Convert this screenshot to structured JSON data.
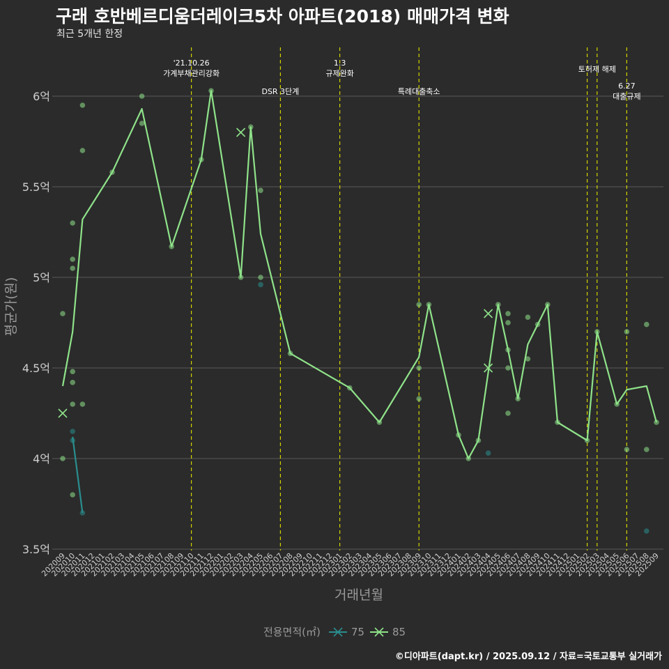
{
  "header": {
    "title": "구래 호반베르디움더레이크5차 아파트(2018) 매매가격 변화",
    "subtitle": "최근 5개년 한정"
  },
  "caption": "©디아파트(dapt.kr) / 2025.09.12 / 자료=국토교통부 실거래가",
  "legend": {
    "title": "전용면적(㎡)",
    "items": [
      {
        "label": "75",
        "color": "#2a8e8e"
      },
      {
        "label": "85",
        "color": "#8fe38a"
      }
    ]
  },
  "colors": {
    "background": "#2b2b2b",
    "grid": "#5a5a5a",
    "event_line": "#d4d400",
    "series75": "#2a8e8e",
    "series85": "#8fe38a",
    "axis_text": "#cfcfcf"
  },
  "chart_data": {
    "type": "line",
    "title": "구래 호반베르디움더레이크5차 아파트(2018) 매매가격 변화",
    "xlabel": "거래년월",
    "ylabel": "평균가(원)",
    "ylim": [
      3.5,
      6.25
    ],
    "yticks": [
      {
        "value": 3.5,
        "label": "3.5억"
      },
      {
        "value": 4.0,
        "label": "4억"
      },
      {
        "value": 4.5,
        "label": "4.5억"
      },
      {
        "value": 5.0,
        "label": "5억"
      },
      {
        "value": 5.5,
        "label": "5.5억"
      },
      {
        "value": 6.0,
        "label": "6억"
      }
    ],
    "categories": [
      "202009",
      "202010",
      "202011",
      "202012",
      "202101",
      "202102",
      "202103",
      "202104",
      "202105",
      "202106",
      "202107",
      "202108",
      "202109",
      "202110",
      "202111",
      "202112",
      "202201",
      "202202",
      "202203",
      "202204",
      "202205",
      "202206",
      "202207",
      "202208",
      "202209",
      "202210",
      "202211",
      "202212",
      "202301",
      "202302",
      "202303",
      "202304",
      "202305",
      "202306",
      "202307",
      "202308",
      "202309",
      "202310",
      "202311",
      "202312",
      "202401",
      "202402",
      "202403",
      "202404",
      "202405",
      "202406",
      "202407",
      "202408",
      "202409",
      "202410",
      "202411",
      "202412",
      "202501",
      "202502",
      "202503",
      "202504",
      "202505",
      "202506",
      "202507",
      "202508",
      "202509"
    ],
    "events": [
      {
        "x": 13.0,
        "label": "'21.10.26\n가계부채관리강화"
      },
      {
        "x": 22.0,
        "label": "DSR 3단계"
      },
      {
        "x": 28.0,
        "label": "1.3\n규제완화"
      },
      {
        "x": 36.0,
        "label": "특례대출축소"
      },
      {
        "x": 53.0,
        "label": ""
      },
      {
        "x": 54.0,
        "label": "토허제 해제"
      },
      {
        "x": 57.0,
        "label": "6.27\n대출규제"
      }
    ],
    "series": [
      {
        "name": "75",
        "color": "#2a8e8e",
        "line": [
          [
            1,
            4.12
          ],
          [
            2,
            3.7
          ]
        ],
        "markers": [],
        "points": [
          [
            1,
            4.15
          ],
          [
            1,
            4.1
          ],
          [
            2,
            3.7
          ],
          [
            20,
            4.96
          ],
          [
            43,
            4.03
          ],
          [
            59,
            3.6
          ]
        ]
      },
      {
        "name": "85",
        "color": "#8fe38a",
        "line": [
          [
            0,
            4.4
          ],
          [
            1,
            4.7
          ],
          [
            2,
            5.32
          ],
          [
            5,
            5.58
          ],
          [
            8,
            5.93
          ],
          [
            11,
            5.17
          ],
          [
            14,
            5.65
          ],
          [
            15,
            6.03
          ],
          [
            18,
            5.0
          ],
          [
            19,
            5.83
          ],
          [
            20,
            5.24
          ],
          [
            23,
            4.58
          ],
          [
            29,
            4.39
          ],
          [
            32,
            4.2
          ],
          [
            36,
            4.56
          ],
          [
            37,
            4.85
          ],
          [
            40,
            4.13
          ],
          [
            41,
            4.0
          ],
          [
            42,
            4.1
          ],
          [
            44,
            4.85
          ],
          [
            45,
            4.6
          ],
          [
            46,
            4.33
          ],
          [
            47,
            4.63
          ],
          [
            48,
            4.74
          ],
          [
            49,
            4.85
          ],
          [
            50,
            4.2
          ],
          [
            53,
            4.1
          ],
          [
            54,
            4.7
          ],
          [
            56,
            4.3
          ],
          [
            57,
            4.38
          ],
          [
            59,
            4.4
          ],
          [
            60,
            4.2
          ]
        ],
        "markers": [
          [
            0,
            4.25
          ],
          [
            18,
            5.8
          ],
          [
            43,
            4.8
          ],
          [
            43,
            4.5
          ]
        ],
        "points": [
          [
            0,
            4.8
          ],
          [
            0,
            4.0
          ],
          [
            1,
            4.48
          ],
          [
            1,
            4.42
          ],
          [
            1,
            4.3
          ],
          [
            1,
            3.8
          ],
          [
            1,
            5.3
          ],
          [
            1,
            5.1
          ],
          [
            1,
            5.05
          ],
          [
            2,
            5.95
          ],
          [
            2,
            5.7
          ],
          [
            2,
            4.3
          ],
          [
            5,
            5.58
          ],
          [
            8,
            6.0
          ],
          [
            8,
            5.85
          ],
          [
            11,
            5.17
          ],
          [
            14,
            5.65
          ],
          [
            15,
            6.03
          ],
          [
            18,
            5.0
          ],
          [
            19,
            5.83
          ],
          [
            20,
            5.48
          ],
          [
            20,
            5.0
          ],
          [
            23,
            4.58
          ],
          [
            29,
            4.39
          ],
          [
            32,
            4.2
          ],
          [
            36,
            4.85
          ],
          [
            36,
            4.5
          ],
          [
            36,
            4.33
          ],
          [
            37,
            4.85
          ],
          [
            40,
            4.13
          ],
          [
            41,
            4.0
          ],
          [
            42,
            4.1
          ],
          [
            44,
            4.85
          ],
          [
            45,
            4.8
          ],
          [
            45,
            4.75
          ],
          [
            45,
            4.6
          ],
          [
            45,
            4.5
          ],
          [
            45,
            4.25
          ],
          [
            46,
            4.33
          ],
          [
            47,
            4.78
          ],
          [
            47,
            4.55
          ],
          [
            48,
            4.74
          ],
          [
            49,
            4.85
          ],
          [
            50,
            4.2
          ],
          [
            53,
            4.1
          ],
          [
            54,
            4.7
          ],
          [
            56,
            4.3
          ],
          [
            57,
            4.7
          ],
          [
            57,
            4.05
          ],
          [
            59,
            4.74
          ],
          [
            59,
            4.05
          ],
          [
            60,
            4.2
          ]
        ]
      }
    ]
  }
}
